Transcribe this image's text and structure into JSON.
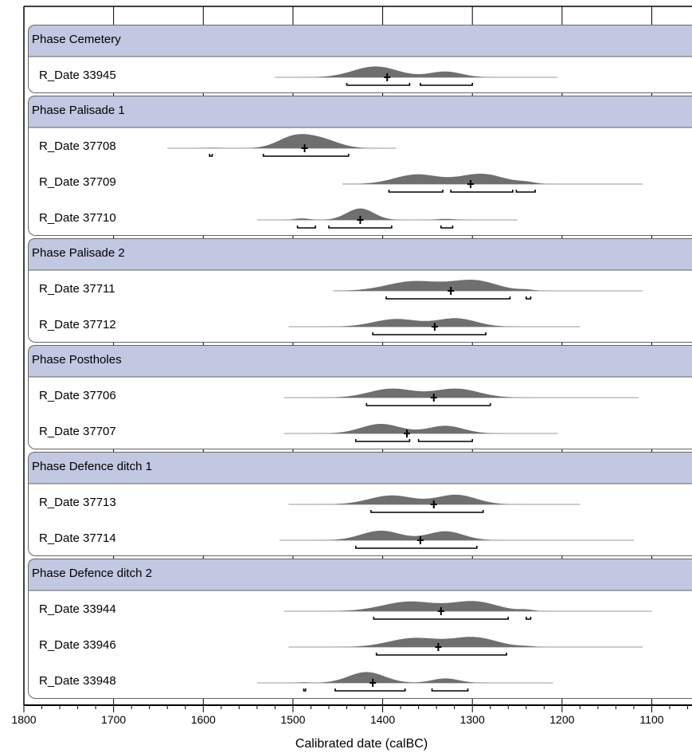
{
  "chart_data": {
    "type": "area",
    "title": "",
    "xlabel": "Calibrated date (calBC)",
    "ylabel": "",
    "xlim": [
      1800,
      1060
    ],
    "x_ticks": [
      1800,
      1700,
      1600,
      1500,
      1400,
      1300,
      1200,
      1100
    ],
    "grid": true,
    "reversed_x": true,
    "phases": [
      {
        "label": "Phase Cemetery",
        "dates": [
          {
            "label": "R_Date 33945",
            "range": [
              1520,
              1205
            ],
            "median": 1395,
            "peaks": [
              [
                1408,
                0.85,
                25
              ],
              [
                1330,
                0.45,
                18
              ]
            ],
            "hpd68": [],
            "hpd95": [
              [
                1440,
                1370
              ],
              [
                1358,
                1300
              ]
            ]
          }
        ]
      },
      {
        "label": "Phase Palisade 1",
        "dates": [
          {
            "label": "R_Date 37708",
            "range": [
              1640,
              1385
            ],
            "median": 1487,
            "peaks": [
              [
                1500,
                0.8,
                18
              ],
              [
                1470,
                0.7,
                20
              ],
              [
                1590,
                0.04,
                8
              ]
            ],
            "hpd68": [],
            "hpd95": [
              [
                1593,
                1590
              ],
              [
                1533,
                1438
              ]
            ]
          },
          {
            "label": "R_Date 37709",
            "range": [
              1445,
              1110
            ],
            "median": 1302,
            "peaks": [
              [
                1362,
                0.75,
                25
              ],
              [
                1290,
                0.8,
                25
              ],
              [
                1240,
                0.12,
                10
              ]
            ],
            "hpd68": [],
            "hpd95": [
              [
                1393,
                1333
              ],
              [
                1324,
                1255
              ],
              [
                1251,
                1230
              ]
            ]
          },
          {
            "label": "R_Date 37710",
            "range": [
              1540,
              1250
            ],
            "median": 1425,
            "peaks": [
              [
                1425,
                0.9,
                15
              ],
              [
                1490,
                0.12,
                8
              ],
              [
                1330,
                0.08,
                10
              ]
            ],
            "hpd68": [],
            "hpd95": [
              [
                1495,
                1475
              ],
              [
                1460,
                1390
              ],
              [
                1335,
                1322
              ]
            ]
          }
        ]
      },
      {
        "label": "Phase Palisade 2",
        "dates": [
          {
            "label": "R_Date 37711",
            "range": [
              1455,
              1110
            ],
            "median": 1324,
            "peaks": [
              [
                1365,
                0.75,
                30
              ],
              [
                1298,
                0.8,
                25
              ],
              [
                1240,
                0.08,
                8
              ]
            ],
            "hpd68": [],
            "hpd95": [
              [
                1396,
                1258
              ],
              [
                1240,
                1235
              ]
            ]
          },
          {
            "label": "R_Date 37712",
            "range": [
              1505,
              1180
            ],
            "median": 1342,
            "peaks": [
              [
                1385,
                0.6,
                25
              ],
              [
                1318,
                0.65,
                22
              ]
            ],
            "hpd68": [],
            "hpd95": [
              [
                1411,
                1285
              ]
            ]
          }
        ]
      },
      {
        "label": "Phase Postholes",
        "dates": [
          {
            "label": "R_Date 37706",
            "range": [
              1510,
              1115
            ],
            "median": 1343,
            "peaks": [
              [
                1390,
                0.7,
                25
              ],
              [
                1318,
                0.7,
                25
              ]
            ],
            "hpd68": [],
            "hpd95": [
              [
                1418,
                1280
              ]
            ]
          },
          {
            "label": "R_Date 37707",
            "range": [
              1510,
              1205
            ],
            "median": 1373,
            "peaks": [
              [
                1402,
                0.75,
                22
              ],
              [
                1330,
                0.6,
                20
              ]
            ],
            "hpd68": [],
            "hpd95": [
              [
                1430,
                1370
              ],
              [
                1360,
                1300
              ]
            ]
          }
        ]
      },
      {
        "label": "Phase Defence ditch 1",
        "dates": [
          {
            "label": "R_Date 37713",
            "range": [
              1505,
              1180
            ],
            "median": 1343,
            "peaks": [
              [
                1390,
                0.7,
                25
              ],
              [
                1318,
                0.75,
                22
              ]
            ],
            "hpd68": [],
            "hpd95": [
              [
                1413,
                1288
              ]
            ]
          },
          {
            "label": "R_Date 37714",
            "range": [
              1515,
              1120
            ],
            "median": 1358,
            "peaks": [
              [
                1402,
                0.75,
                22
              ],
              [
                1330,
                0.7,
                20
              ]
            ],
            "hpd68": [],
            "hpd95": [
              [
                1430,
                1295
              ]
            ]
          }
        ]
      },
      {
        "label": "Phase Defence ditch 2",
        "dates": [
          {
            "label": "R_Date 33944",
            "range": [
              1510,
              1100
            ],
            "median": 1335,
            "peaks": [
              [
                1370,
                0.75,
                30
              ],
              [
                1298,
                0.75,
                25
              ],
              [
                1240,
                0.1,
                8
              ]
            ],
            "hpd68": [],
            "hpd95": [
              [
                1410,
                1260
              ],
              [
                1240,
                1235
              ]
            ]
          },
          {
            "label": "R_Date 33946",
            "range": [
              1505,
              1110
            ],
            "median": 1338,
            "peaks": [
              [
                1365,
                0.7,
                28
              ],
              [
                1298,
                0.75,
                25
              ],
              [
                1240,
                0.05,
                8
              ]
            ],
            "hpd68": [],
            "hpd95": [
              [
                1407,
                1262
              ]
            ]
          },
          {
            "label": "R_Date 33948",
            "range": [
              1540,
              1210
            ],
            "median": 1411,
            "peaks": [
              [
                1418,
                0.85,
                20
              ],
              [
                1330,
                0.35,
                15
              ],
              [
                1488,
                0.05,
                6
              ]
            ],
            "hpd68": [],
            "hpd95": [
              [
                1488,
                1486
              ],
              [
                1453,
                1375
              ],
              [
                1345,
                1305
              ]
            ]
          }
        ]
      }
    ]
  }
}
